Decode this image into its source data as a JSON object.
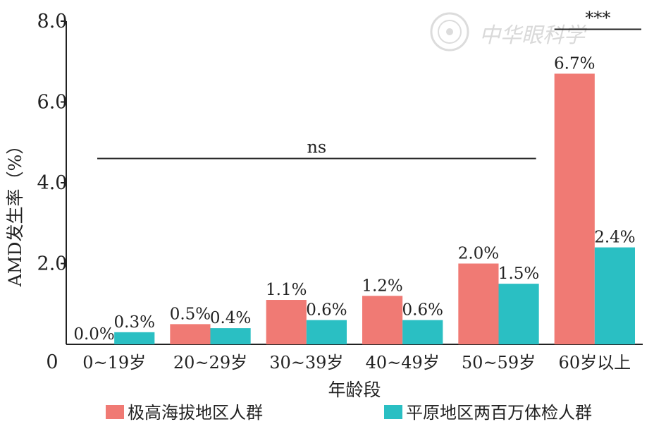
{
  "chart_data": {
    "type": "bar",
    "ylabel": "AMD发生率（%）",
    "xlabel": "年龄段",
    "ylim": [
      0,
      8
    ],
    "yticks": [
      "0",
      "2.0",
      "4.0",
      "6.0",
      "8.0"
    ],
    "categories": [
      "0~19岁",
      "20~29岁",
      "30~39岁",
      "40~49岁",
      "50~59岁",
      "60岁以上"
    ],
    "series": [
      {
        "name": "极高海拔地区人群",
        "color": "#f07a74",
        "values": [
          0.0,
          0.5,
          1.1,
          1.2,
          2.0,
          6.7
        ],
        "value_labels": [
          "0.0%",
          "0.5%",
          "1.1%",
          "1.2%",
          "2.0%",
          "6.7%"
        ]
      },
      {
        "name": "平原地区两百万体检人群",
        "color": "#2abfc3",
        "values": [
          0.3,
          0.4,
          0.6,
          0.6,
          1.5,
          2.4
        ],
        "value_labels": [
          "0.3%",
          "0.4%",
          "0.6%",
          "0.6%",
          "1.5%",
          "2.4%"
        ]
      }
    ],
    "annotations": [
      {
        "text": "ns",
        "from_category": 0,
        "to_category": 4,
        "y": 4.6
      },
      {
        "text": "***",
        "from_category": 5,
        "to_category": 5,
        "y": 7.8
      }
    ],
    "legend": "bottom",
    "grid": false
  },
  "watermark": {
    "text": "中华眼科学",
    "icon": "society-seal-icon"
  }
}
